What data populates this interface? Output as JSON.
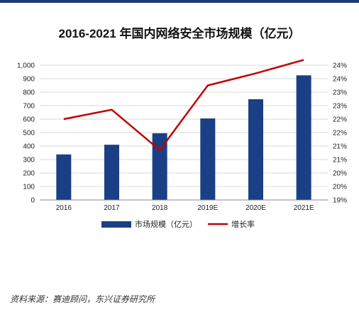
{
  "colors": {
    "top_rule": "#1d3d74",
    "bar": "#1a3f85",
    "line": "#c00000",
    "grid": "#d9d9d9",
    "axis": "#888888"
  },
  "chart_data": {
    "type": "bar",
    "title": "2016-2021 年国内网络安全市场规模（亿元）",
    "categories": [
      "2016",
      "2017",
      "2018",
      "2019E",
      "2020E",
      "2021E"
    ],
    "series": [
      {
        "name": "市场规模（亿元）",
        "type": "bar",
        "axis": "left",
        "values": [
          338,
          410,
          495,
          605,
          748,
          925
        ]
      },
      {
        "name": "增长率",
        "type": "line",
        "axis": "right",
        "values": [
          22.0,
          22.35,
          20.85,
          23.25,
          23.7,
          24.2
        ]
      }
    ],
    "y_left": {
      "ylim": [
        0,
        1000
      ],
      "ticks": [
        0,
        100,
        200,
        300,
        400,
        500,
        600,
        700,
        800,
        900,
        1000
      ],
      "tick_labels": [
        "0",
        "100",
        "200",
        "300",
        "400",
        "500",
        "600",
        "700",
        "800",
        "900",
        "1,000"
      ]
    },
    "y_right": {
      "ylim": [
        19,
        24
      ],
      "ticks": [
        19,
        19.5,
        20,
        20.5,
        21,
        21.5,
        22,
        22.5,
        23,
        23.5,
        24
      ],
      "tick_labels": [
        "19%",
        "20%",
        "20%",
        "21%",
        "21%",
        "22%",
        "22%",
        "23%",
        "23%",
        "24%",
        "24%"
      ]
    },
    "grid": true,
    "legend": "bottom"
  },
  "source_note": "资料来源：赛迪顾问，东兴证券研究所"
}
